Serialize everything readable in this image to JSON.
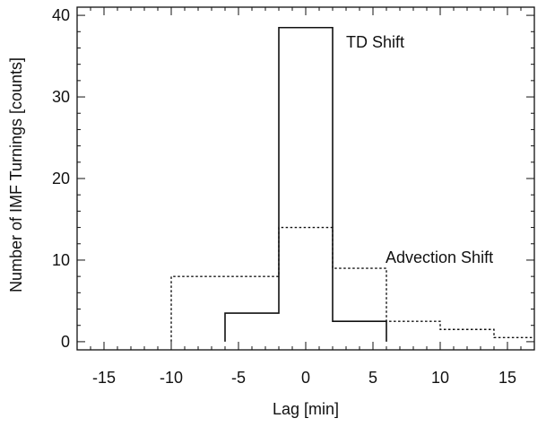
{
  "chart_data": {
    "type": "histogram",
    "title": "",
    "xlabel": "Lag [min]",
    "ylabel": "Number of IMF Turnings [counts]",
    "xlim": [
      -17,
      17
    ],
    "ylim": [
      -1,
      41
    ],
    "xticks": [
      -15,
      -10,
      -5,
      0,
      5,
      10,
      15
    ],
    "yticks": [
      0,
      10,
      20,
      30,
      40
    ],
    "xtick_labels": [
      "-15",
      "-10",
      "-5",
      "0",
      "5",
      "10",
      "15"
    ],
    "ytick_labels": [
      "0",
      "10",
      "20",
      "30",
      "40"
    ],
    "grid": false,
    "series": [
      {
        "name": "TD Shift",
        "style": "solid",
        "color": "#111111",
        "bins": [
          {
            "x0": -6,
            "x1": -2,
            "value": 3.5
          },
          {
            "x0": -2,
            "x1": 2,
            "value": 38.5
          },
          {
            "x0": 2,
            "x1": 6,
            "value": 2.5
          }
        ]
      },
      {
        "name": "Advection Shift",
        "style": "dotted",
        "color": "#111111",
        "bins": [
          {
            "x0": -10,
            "x1": -2,
            "value": 8
          },
          {
            "x0": -2,
            "x1": 2,
            "value": 14
          },
          {
            "x0": 2,
            "x1": 6,
            "value": 9
          },
          {
            "x0": 6,
            "x1": 10,
            "value": 2.5
          },
          {
            "x0": 10,
            "x1": 14,
            "value": 1.5
          },
          {
            "x0": 14,
            "x1": 17,
            "value": 0.5
          }
        ]
      }
    ],
    "annotations": [
      {
        "text": "TD Shift",
        "series": "TD Shift"
      },
      {
        "text": "Advection Shift",
        "series": "Advection Shift"
      }
    ]
  }
}
